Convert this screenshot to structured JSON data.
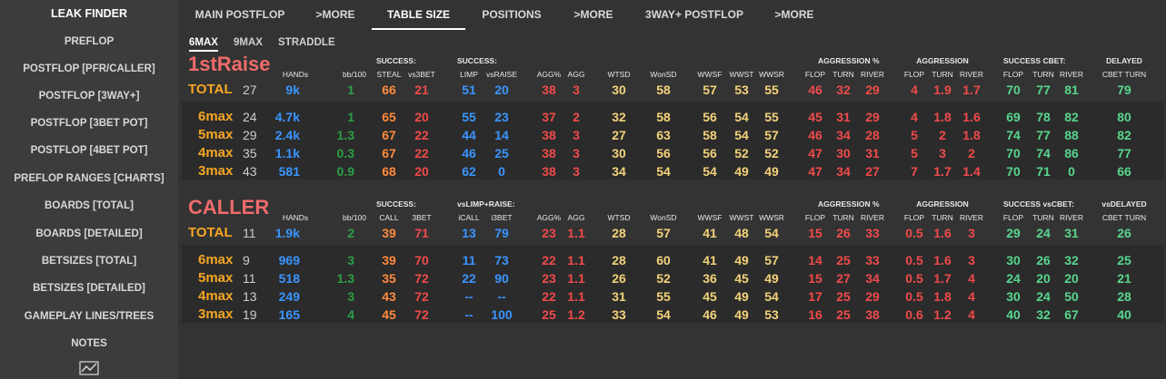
{
  "sidebar": {
    "items": [
      {
        "label": "LEAK FINDER"
      },
      {
        "label": "PREFLOP"
      },
      {
        "label": "POSTFLOP [PFR/CALLER]"
      },
      {
        "label": "POSTFLOP [3WAY+]"
      },
      {
        "label": "POSTFLOP [3BET POT]"
      },
      {
        "label": "POSTFLOP [4BET POT]"
      },
      {
        "label": "PREFLOP RANGES [CHARTS]"
      },
      {
        "label": "BOARDS [TOTAL]"
      },
      {
        "label": "BOARDS [DETAILED]"
      },
      {
        "label": "BETSIZES [TOTAL]"
      },
      {
        "label": "BETSIZES [DETAILED]"
      },
      {
        "label": "GAMEPLAY LINES/TREES"
      },
      {
        "label": "NOTES"
      }
    ],
    "bottom_icon": "chart-line-icon"
  },
  "tabs": [
    {
      "label": "MAIN POSTFLOP"
    },
    {
      "label": ">MORE"
    },
    {
      "label": "TABLE SIZE"
    },
    {
      "label": "POSITIONS"
    },
    {
      "label": ">MORE"
    },
    {
      "label": "3WAY+ POSTFLOP"
    },
    {
      "label": ">MORE"
    }
  ],
  "subtabs": [
    {
      "label": "6MAX"
    },
    {
      "label": "9MAX"
    },
    {
      "label": "STRADDLE"
    }
  ],
  "raise": {
    "title": "1stRaise",
    "group_headers": {
      "success1": "SUCCESS:",
      "success2": "SUCCESS:",
      "aggpct": "AGGRESSION %",
      "agg": "AGGRESSION",
      "scbet": "SUCCESS CBET:",
      "delayed": "DELAYED"
    },
    "col_headers": {
      "hands": "HANDs",
      "bb": "bb/100",
      "c1": "STEAL",
      "c2": "vs3BET",
      "c3": "LIMP",
      "c4": "vsRAISE",
      "aggp": "AGG%",
      "agg": "AGG",
      "wtsd": "WTSD",
      "wonsd": "WonSD",
      "wwsf": "WWSF",
      "wwst": "WWST",
      "wwsr": "WWSR",
      "ap1": "FLOP",
      "ap2": "TURN",
      "ap3": "RIVER",
      "a1": "FLOP",
      "a2": "TURN",
      "a3": "RIVER",
      "s1": "FLOP",
      "s2": "TURN",
      "s3": "RIVER",
      "dct": "CBET TURN"
    },
    "total": {
      "label": "TOTAL",
      "n": "27",
      "hands": "9k",
      "bb": "1",
      "c1": "66",
      "c2": "21",
      "c3": "51",
      "c4": "20",
      "aggp": "38",
      "agg": "3",
      "wtsd": "30",
      "wonsd": "58",
      "wwsf": "57",
      "wwst": "53",
      "wwsr": "55",
      "ap1": "46",
      "ap2": "32",
      "ap3": "29",
      "a1": "4",
      "a2": "1.9",
      "a3": "1.7",
      "s1": "70",
      "s2": "77",
      "s3": "81",
      "dct": "79"
    },
    "rows": [
      {
        "label": "6max",
        "n": "24",
        "hands": "4.7k",
        "bb": "1",
        "c1": "65",
        "c2": "20",
        "c3": "55",
        "c4": "23",
        "aggp": "37",
        "agg": "2",
        "wtsd": "32",
        "wonsd": "58",
        "wwsf": "56",
        "wwst": "54",
        "wwsr": "55",
        "ap1": "45",
        "ap2": "31",
        "ap3": "29",
        "a1": "4",
        "a2": "1.8",
        "a3": "1.6",
        "s1": "69",
        "s2": "78",
        "s3": "82",
        "dct": "80"
      },
      {
        "label": "5max",
        "n": "29",
        "hands": "2.4k",
        "bb": "1.3",
        "c1": "67",
        "c2": "22",
        "c3": "44",
        "c4": "14",
        "aggp": "38",
        "agg": "3",
        "wtsd": "27",
        "wonsd": "63",
        "wwsf": "58",
        "wwst": "54",
        "wwsr": "57",
        "ap1": "46",
        "ap2": "34",
        "ap3": "28",
        "a1": "5",
        "a2": "2",
        "a3": "1.8",
        "s1": "74",
        "s2": "77",
        "s3": "88",
        "dct": "82"
      },
      {
        "label": "4max",
        "n": "35",
        "hands": "1.1k",
        "bb": "0.3",
        "c1": "67",
        "c2": "22",
        "c3": "46",
        "c4": "25",
        "aggp": "38",
        "agg": "3",
        "wtsd": "30",
        "wonsd": "56",
        "wwsf": "56",
        "wwst": "52",
        "wwsr": "52",
        "ap1": "47",
        "ap2": "30",
        "ap3": "31",
        "a1": "5",
        "a2": "3",
        "a3": "2",
        "s1": "70",
        "s2": "74",
        "s3": "86",
        "dct": "77"
      },
      {
        "label": "3max",
        "n": "43",
        "hands": "581",
        "bb": "0.9",
        "c1": "68",
        "c2": "20",
        "c3": "62",
        "c4": "0",
        "aggp": "38",
        "agg": "3",
        "wtsd": "34",
        "wonsd": "54",
        "wwsf": "54",
        "wwst": "49",
        "wwsr": "49",
        "ap1": "47",
        "ap2": "34",
        "ap3": "27",
        "a1": "7",
        "a2": "1.7",
        "a3": "1.4",
        "s1": "70",
        "s2": "71",
        "s3": "0",
        "dct": "66"
      }
    ]
  },
  "caller": {
    "title": "CALLER",
    "group_headers": {
      "success1": "SUCCESS:",
      "success2": "vsLIMP+RAISE:",
      "aggpct": "AGGRESSION %",
      "agg": "AGGRESSION",
      "scbet": "SUCCESS vsCBET:",
      "delayed": "vsDELAYED"
    },
    "col_headers": {
      "hands": "HANDs",
      "bb": "bb/100",
      "c1": "CALL",
      "c2": "3BET",
      "c3": "iCALL",
      "c4": "i3BET",
      "aggp": "AGG%",
      "agg": "AGG",
      "wtsd": "WTSD",
      "wonsd": "WonSD",
      "wwsf": "WWSF",
      "wwst": "WWST",
      "wwsr": "WWSR",
      "ap1": "FLOP",
      "ap2": "TURN",
      "ap3": "RIVER",
      "a1": "FLOP",
      "a2": "TURN",
      "a3": "RIVER",
      "s1": "FLOP",
      "s2": "TURN",
      "s3": "RIVER",
      "dct": "CBET TURN"
    },
    "total": {
      "label": "TOTAL",
      "n": "11",
      "hands": "1.9k",
      "bb": "2",
      "c1": "39",
      "c2": "71",
      "c3": "13",
      "c4": "79",
      "aggp": "23",
      "agg": "1.1",
      "wtsd": "28",
      "wonsd": "57",
      "wwsf": "41",
      "wwst": "48",
      "wwsr": "54",
      "ap1": "15",
      "ap2": "26",
      "ap3": "33",
      "a1": "0.5",
      "a2": "1.6",
      "a3": "3",
      "s1": "29",
      "s2": "24",
      "s3": "31",
      "dct": "26"
    },
    "rows": [
      {
        "label": "6max",
        "n": "9",
        "hands": "969",
        "bb": "3",
        "c1": "39",
        "c2": "70",
        "c3": "11",
        "c4": "73",
        "aggp": "22",
        "agg": "1.1",
        "wtsd": "28",
        "wonsd": "60",
        "wwsf": "41",
        "wwst": "49",
        "wwsr": "57",
        "ap1": "14",
        "ap2": "25",
        "ap3": "33",
        "a1": "0.5",
        "a2": "1.6",
        "a3": "3",
        "s1": "30",
        "s2": "26",
        "s3": "32",
        "dct": "25"
      },
      {
        "label": "5max",
        "n": "11",
        "hands": "518",
        "bb": "1.3",
        "c1": "35",
        "c2": "72",
        "c3": "22",
        "c4": "90",
        "aggp": "23",
        "agg": "1.1",
        "wtsd": "26",
        "wonsd": "52",
        "wwsf": "36",
        "wwst": "45",
        "wwsr": "49",
        "ap1": "15",
        "ap2": "27",
        "ap3": "34",
        "a1": "0.5",
        "a2": "1.7",
        "a3": "4",
        "s1": "24",
        "s2": "20",
        "s3": "20",
        "dct": "21"
      },
      {
        "label": "4max",
        "n": "13",
        "hands": "249",
        "bb": "3",
        "c1": "43",
        "c2": "72",
        "c3": "--",
        "c4": "--",
        "aggp": "22",
        "agg": "1.1",
        "wtsd": "31",
        "wonsd": "55",
        "wwsf": "45",
        "wwst": "49",
        "wwsr": "54",
        "ap1": "17",
        "ap2": "25",
        "ap3": "29",
        "a1": "0.5",
        "a2": "1.8",
        "a3": "4",
        "s1": "30",
        "s2": "24",
        "s3": "50",
        "dct": "28"
      },
      {
        "label": "3max",
        "n": "19",
        "hands": "165",
        "bb": "4",
        "c1": "45",
        "c2": "72",
        "c3": "--",
        "c4": "100",
        "aggp": "25",
        "agg": "1.2",
        "wtsd": "33",
        "wonsd": "54",
        "wwsf": "46",
        "wwst": "49",
        "wwsr": "53",
        "ap1": "16",
        "ap2": "25",
        "ap3": "38",
        "a1": "0.6",
        "a2": "1.2",
        "a3": "4",
        "s1": "40",
        "s2": "32",
        "s3": "67",
        "dct": "40"
      }
    ]
  },
  "colors": {
    "background": "#333333",
    "sidebar": "#3c3c3c",
    "title_red": "#f06b6b",
    "total_orange": "#f5a623",
    "blue": "#3a95ff",
    "red": "#f04a4a",
    "yellow": "#f3d27a",
    "green": "#58d68d"
  }
}
